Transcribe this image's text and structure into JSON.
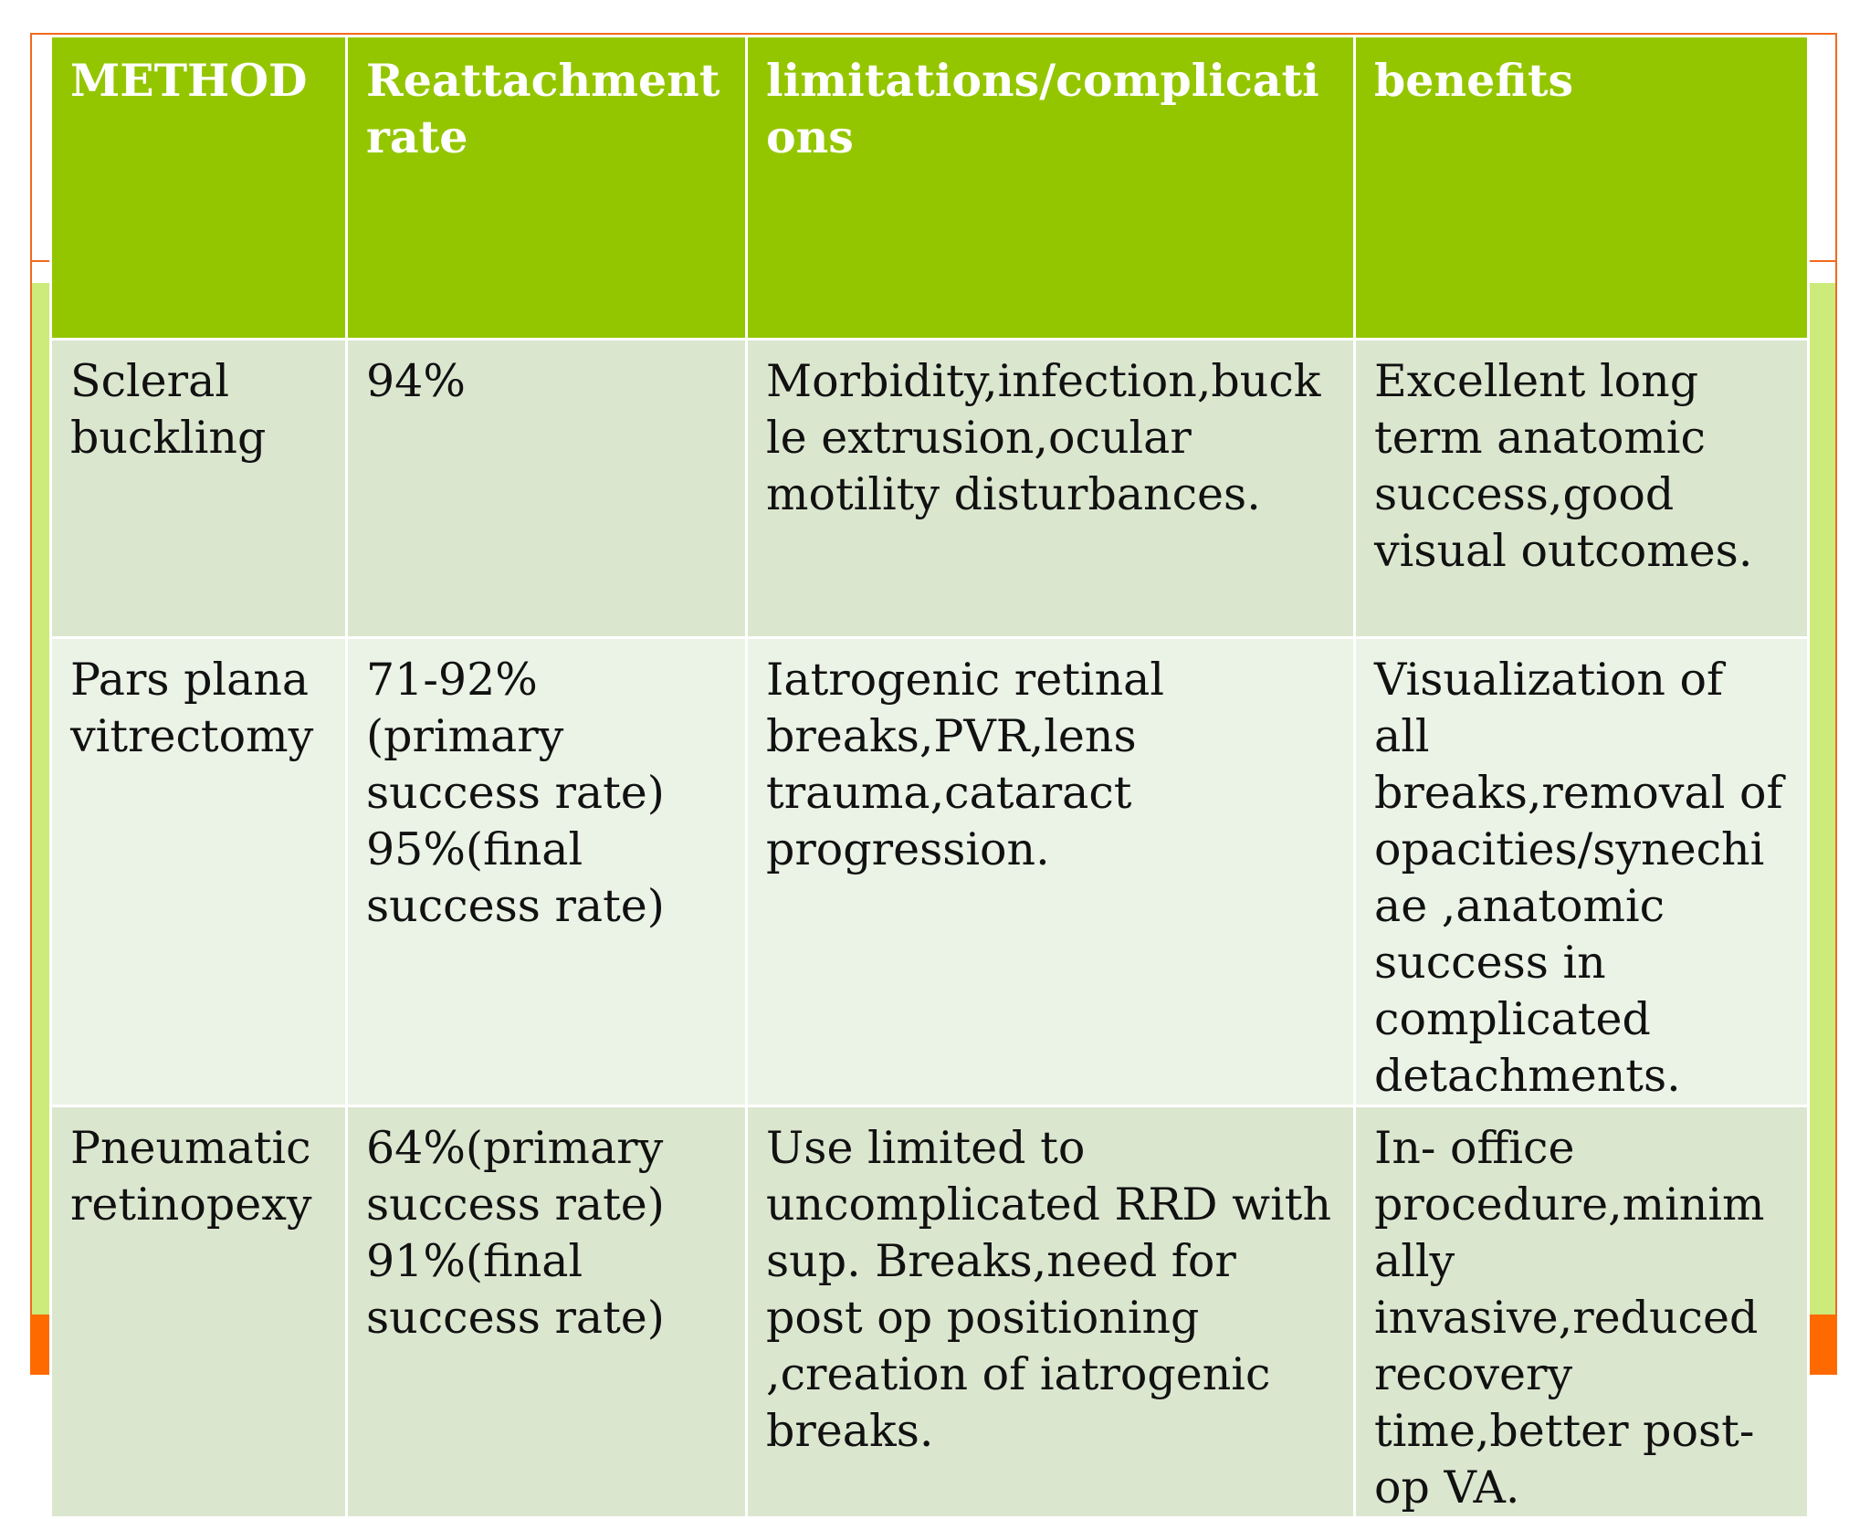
{
  "table": {
    "headers": [
      "METHOD",
      "Reattachment rate",
      "limitations/complications",
      "benefits"
    ],
    "rows": [
      {
        "method": "Scleral buckling",
        "rate": "94%",
        "limitations": "Morbidity,infection,buckle extrusion,ocular motility disturbances.",
        "benefits": "Excellent long term anatomic success,good visual outcomes."
      },
      {
        "method": "Pars plana vitrectomy",
        "rate": "71-92%(primary success rate)\n95%(final success rate)",
        "limitations": "Iatrogenic retinal breaks,PVR,lens trauma,cataract progression.",
        "benefits": "Visualization of all breaks,removal of opacities/synechiae ,anatomic success in complicated detachments."
      },
      {
        "method": "Pneumatic retinopexy",
        "rate": "64%(primary success rate)\n91%(final success rate)",
        "limitations": "Use limited to uncomplicated RRD with sup. Breaks,need for post op positioning ,creation of iatrogenic breaks.",
        "benefits": "In- office procedure,minimally invasive,reduced recovery time,better post-op VA."
      }
    ]
  }
}
